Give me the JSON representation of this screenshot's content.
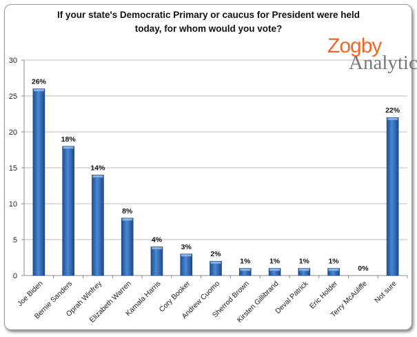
{
  "chart_data": {
    "type": "bar",
    "title": "If your state's Democratic Primary or caucus for President were held today, for whom would you vote?",
    "title_lines": [
      "If your state's Democratic Primary or caucus for President were held",
      "today, for whom would you vote?"
    ],
    "categories": [
      "Joe Biden",
      "Bernie Sanders",
      "Oprah Winfrey",
      "Elizabeth Warren",
      "Kamala Harris",
      "Cory Booker",
      "Andrew Cuomo",
      "Sherrod Brown",
      "Kirsten Gillibrand",
      "Deval Patrick",
      "Eric Holder",
      "Terry McAuliffe",
      "Not sure"
    ],
    "values": [
      26,
      18,
      14,
      8,
      4,
      3,
      2,
      1,
      1,
      1,
      1,
      0,
      22
    ],
    "data_labels": [
      "26%",
      "18%",
      "14%",
      "8%",
      "4%",
      "3%",
      "2%",
      "1%",
      "1%",
      "1%",
      "1%",
      "0%",
      "22%"
    ],
    "ylim": [
      0,
      30
    ],
    "yticks": [
      0,
      5,
      10,
      15,
      20,
      25,
      30
    ],
    "grid": true,
    "bar_color": "#3a72c0",
    "xlabel": "",
    "ylabel": ""
  },
  "logo": {
    "line1": "Zogby",
    "line2": "Analytics"
  }
}
